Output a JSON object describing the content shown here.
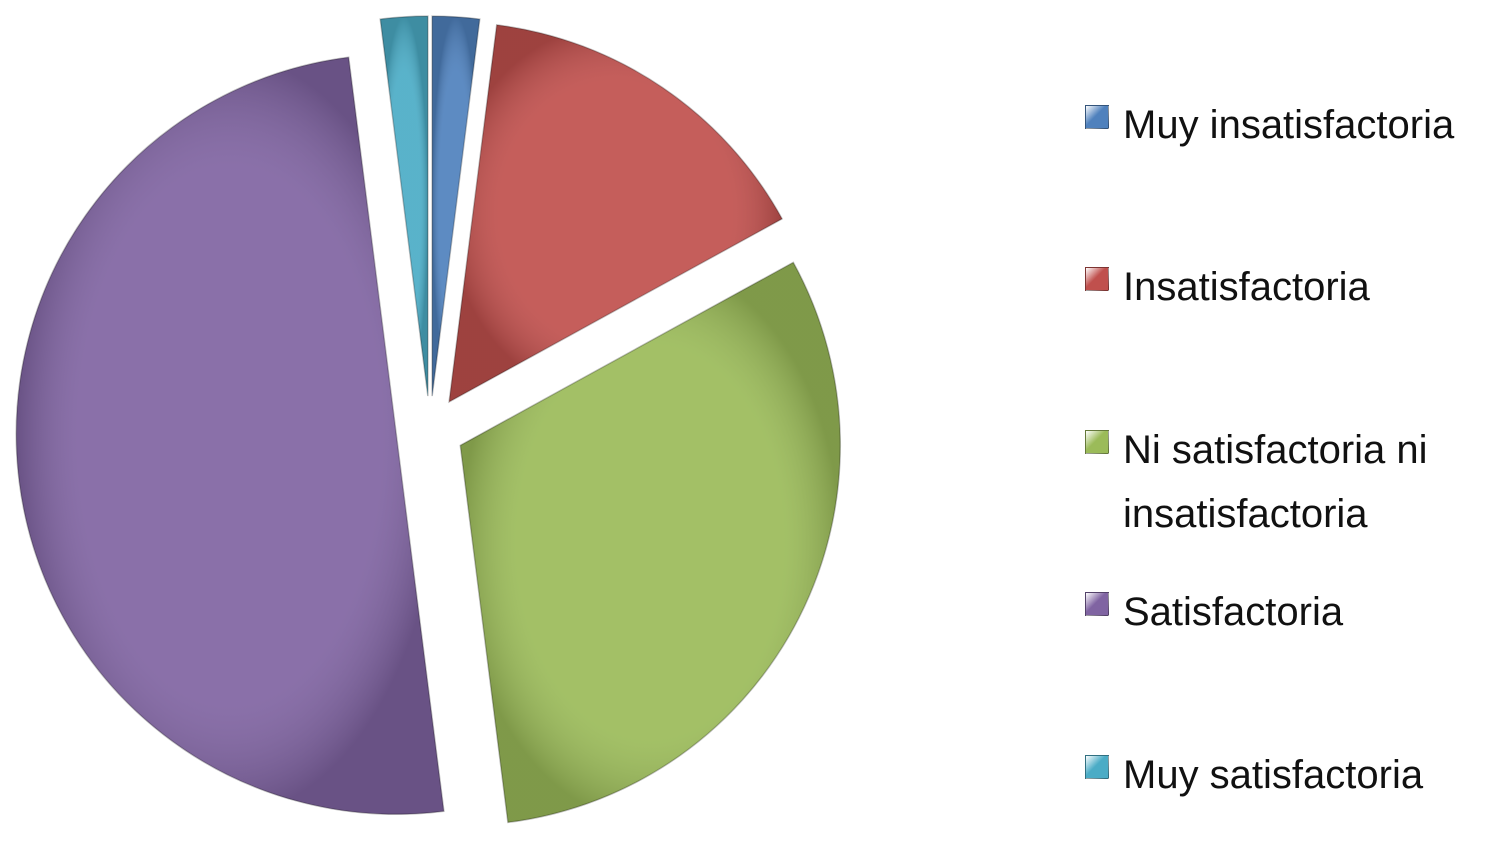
{
  "chart_data": {
    "type": "pie",
    "categories": [
      "Muy insatisfactoria",
      "Insatisfactoria",
      "Ni satisfactoria ni insatisfactoria",
      "Satisfactoria",
      "Muy satisfactoria"
    ],
    "values": [
      2,
      15,
      31,
      50,
      2
    ],
    "colors": [
      "#4f81bd",
      "#c0504d",
      "#9bbb59",
      "#8064a2",
      "#4bacc6"
    ],
    "legend": "right"
  }
}
